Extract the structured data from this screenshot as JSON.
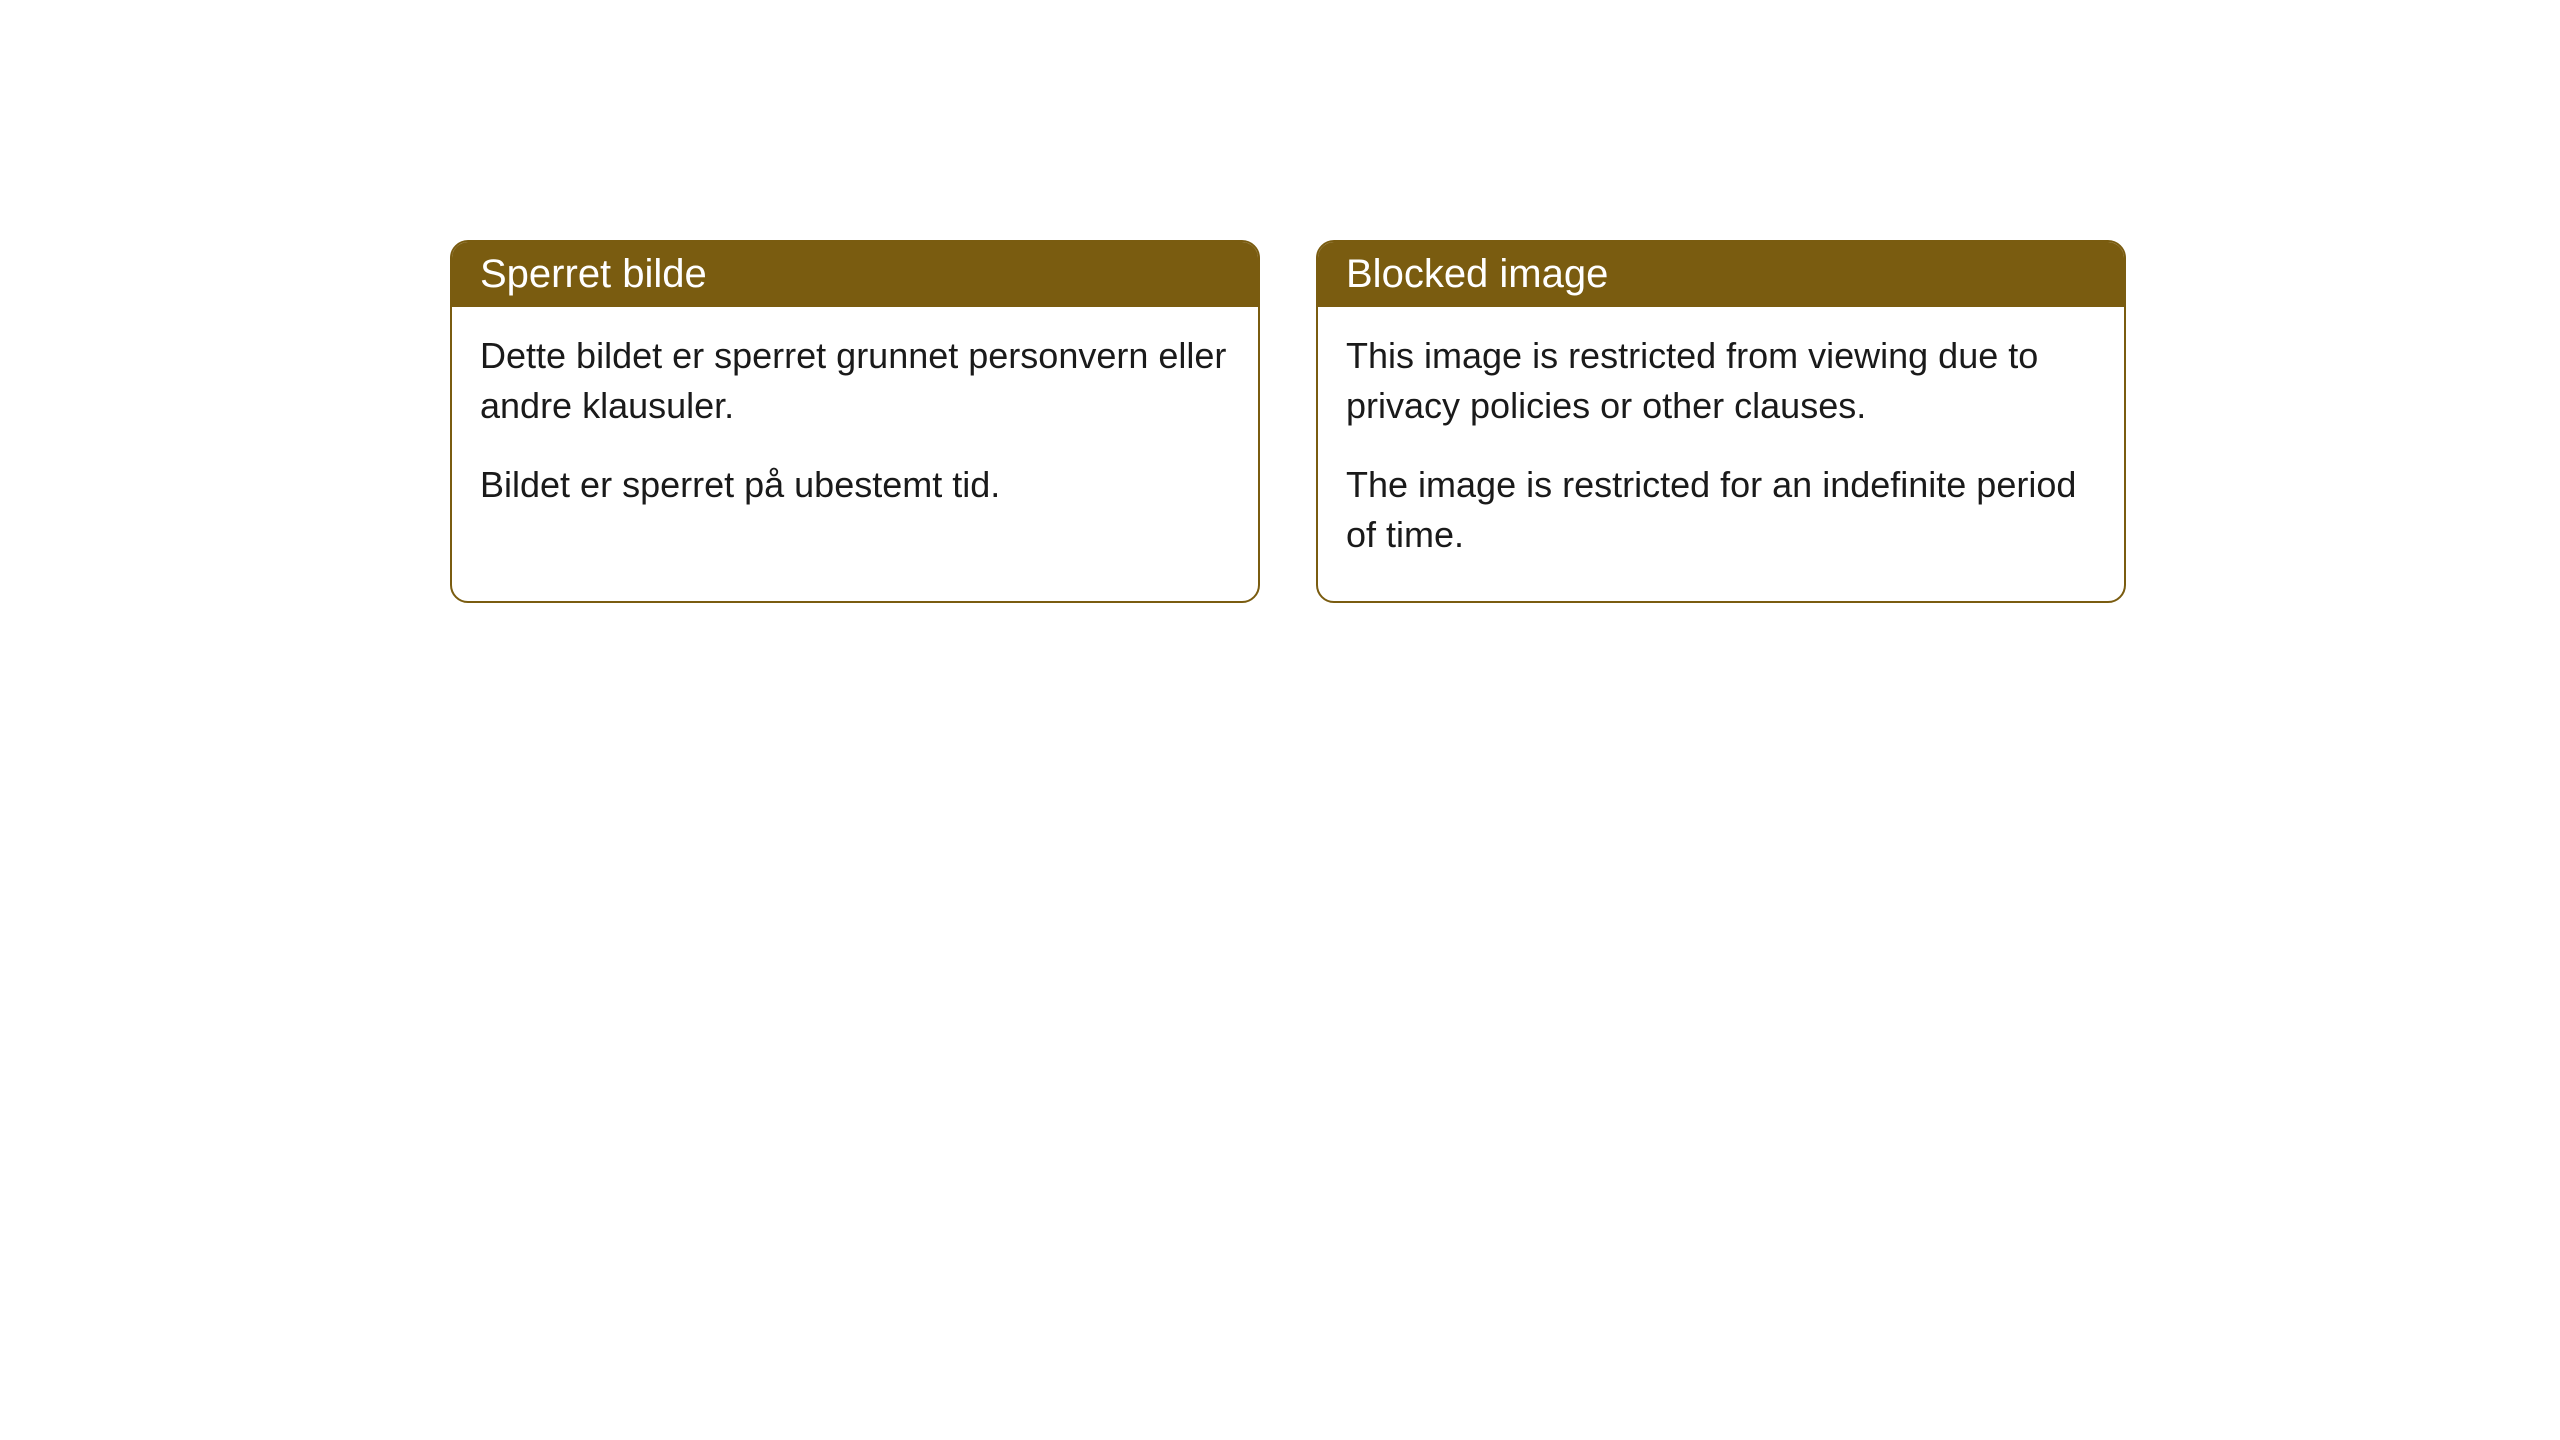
{
  "cards": [
    {
      "title": "Sperret bilde",
      "paragraph1": "Dette bildet er sperret grunnet personvern eller andre klausuler.",
      "paragraph2": "Bildet er sperret på ubestemt tid."
    },
    {
      "title": "Blocked image",
      "paragraph1": "This image is restricted from viewing due to privacy policies or other clauses.",
      "paragraph2": "The image is restricted for an indefinite period of time."
    }
  ],
  "styling": {
    "header_background": "#7a5c10",
    "header_text_color": "#ffffff",
    "card_border_color": "#7a5c10",
    "card_background": "#ffffff",
    "body_text_color": "#1a1a1a",
    "page_background": "#ffffff",
    "border_radius": 18,
    "title_fontsize": 40,
    "body_fontsize": 36
  }
}
